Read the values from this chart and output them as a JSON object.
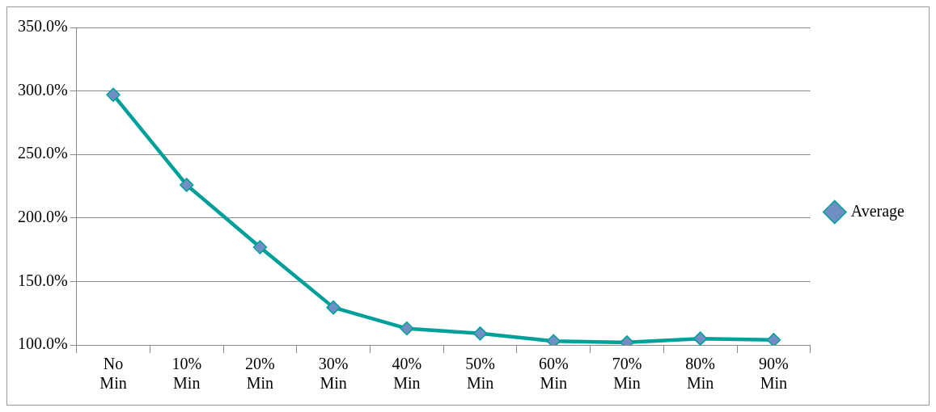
{
  "chart_data": {
    "type": "line",
    "categories": [
      "No Min",
      "10% Min",
      "20% Min",
      "30% Min",
      "40% Min",
      "50% Min",
      "60% Min",
      "70% Min",
      "80% Min",
      "90% Min"
    ],
    "series": [
      {
        "name": "Average",
        "color": "#00a09a",
        "values": [
          297,
          226,
          177,
          129.5,
          113,
          109,
          103,
          102,
          105,
          104
        ]
      }
    ],
    "ylim": [
      100,
      350
    ],
    "yticks": [
      {
        "value": 100,
        "label": "100.0%"
      },
      {
        "value": 150,
        "label": "150.0%"
      },
      {
        "value": 200,
        "label": "200.0%"
      },
      {
        "value": 250,
        "label": "250.0%"
      },
      {
        "value": 300,
        "label": "300.0%"
      },
      {
        "value": 350,
        "label": "350.0%"
      }
    ],
    "grid": "y",
    "legend": "right",
    "marker": "diamond",
    "line_style": "solid"
  }
}
